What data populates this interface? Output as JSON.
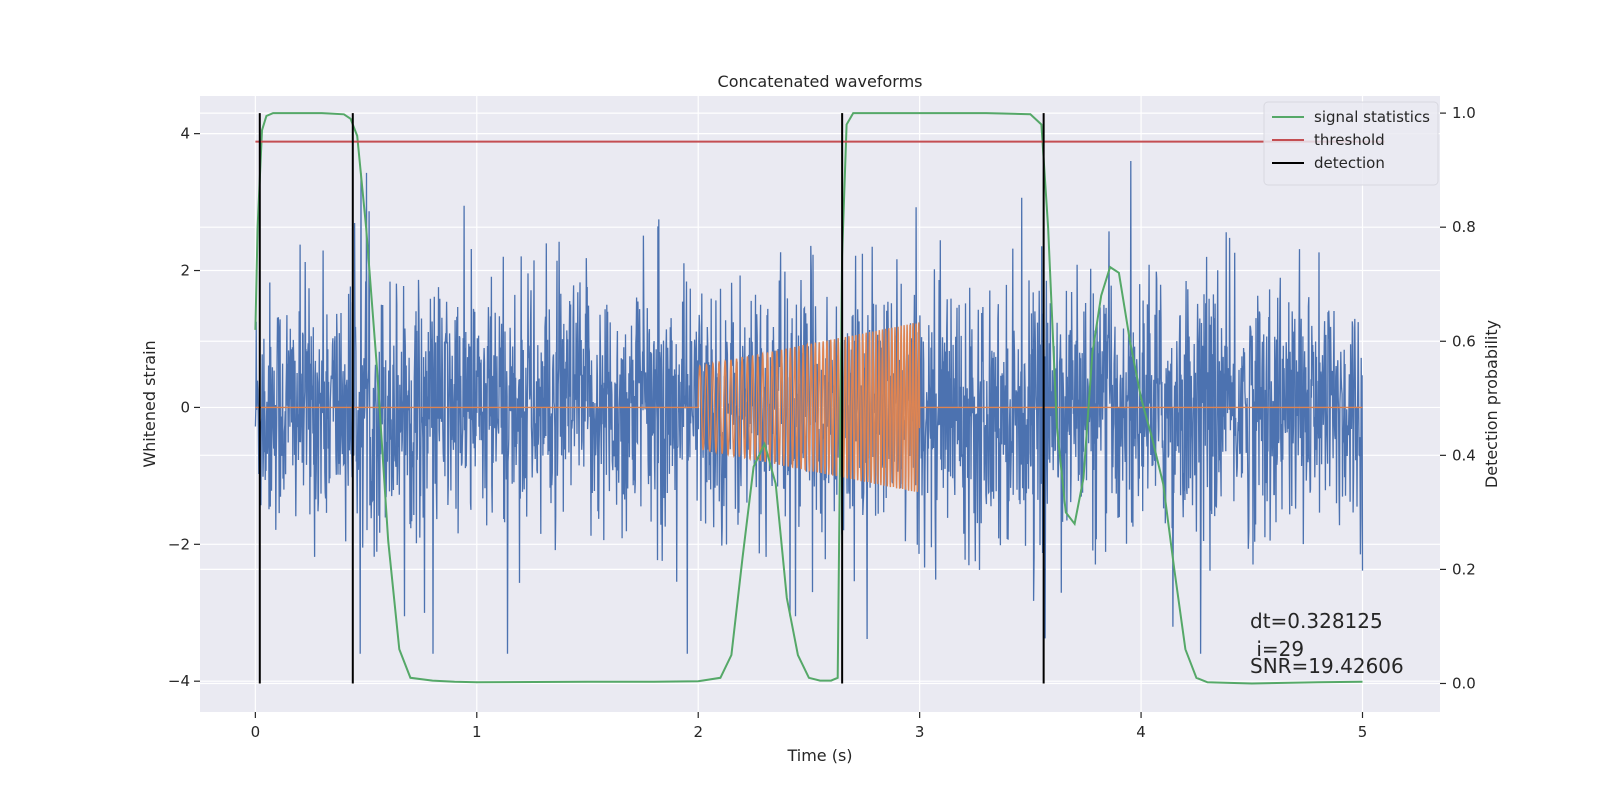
{
  "chart_data": {
    "type": "line",
    "title": "Concatenated waveforms",
    "xlabel": "Time (s)",
    "ylabel_left": "Whitened strain",
    "ylabel_right": "Detection probability",
    "xlim": [
      -0.25,
      5.35
    ],
    "ylim_left": [
      -4.45,
      4.55
    ],
    "ylim_right": [
      -0.05,
      1.03
    ],
    "x_ticks": [
      0,
      1,
      2,
      3,
      4,
      5
    ],
    "x_tick_labels": [
      "0",
      "1",
      "2",
      "3",
      "4",
      "5"
    ],
    "y_left_ticks": [
      -4,
      -2,
      0,
      2,
      4
    ],
    "y_left_tick_labels": [
      "−4",
      "−2",
      "0",
      "2",
      "4"
    ],
    "y_right_ticks": [
      0.0,
      0.2,
      0.4,
      0.6,
      0.8,
      1.0
    ],
    "y_right_tick_labels": [
      "0.0",
      "0.2",
      "0.4",
      "0.6",
      "0.8",
      "1.0"
    ],
    "grid": true,
    "legend_position": "top-right",
    "series": [
      {
        "name": "",
        "axis": "left",
        "kind": "noise",
        "color": "#4c72b0",
        "x_range": [
          0,
          5
        ],
        "amplitude_typical": 0.9,
        "amplitude_max": 3.6
      },
      {
        "name": "",
        "axis": "left",
        "kind": "chirp",
        "color": "#dd8452",
        "x_range": [
          0,
          5
        ],
        "active_range": [
          2.0,
          3.0
        ],
        "amplitude_start": 0.6,
        "amplitude_end": 1.25
      },
      {
        "name": "signal statistics",
        "axis": "right",
        "color": "#55a868",
        "x": [
          0.0,
          0.01,
          0.03,
          0.05,
          0.08,
          0.15,
          0.3,
          0.4,
          0.43,
          0.46,
          0.5,
          0.55,
          0.6,
          0.65,
          0.7,
          0.8,
          0.9,
          1.0,
          1.5,
          1.8,
          2.0,
          2.1,
          2.15,
          2.2,
          2.25,
          2.3,
          2.35,
          2.4,
          2.45,
          2.5,
          2.55,
          2.6,
          2.63,
          2.65,
          2.67,
          2.7,
          2.8,
          3.0,
          3.3,
          3.5,
          3.55,
          3.58,
          3.62,
          3.66,
          3.7,
          3.74,
          3.78,
          3.82,
          3.86,
          3.9,
          3.95,
          4.0,
          4.05,
          4.1,
          4.15,
          4.2,
          4.25,
          4.3,
          4.5,
          4.8,
          5.0
        ],
        "y": [
          0.62,
          0.8,
          0.97,
          0.995,
          1.0,
          1.0,
          1.0,
          0.998,
          0.99,
          0.96,
          0.8,
          0.55,
          0.25,
          0.06,
          0.01,
          0.005,
          0.003,
          0.002,
          0.003,
          0.003,
          0.004,
          0.01,
          0.05,
          0.22,
          0.38,
          0.42,
          0.35,
          0.15,
          0.05,
          0.01,
          0.005,
          0.005,
          0.01,
          0.75,
          0.98,
          1.0,
          1.0,
          1.0,
          1.0,
          0.998,
          0.98,
          0.8,
          0.45,
          0.3,
          0.28,
          0.36,
          0.58,
          0.68,
          0.73,
          0.72,
          0.6,
          0.5,
          0.43,
          0.35,
          0.2,
          0.06,
          0.01,
          0.002,
          0.0,
          0.002,
          0.003
        ]
      },
      {
        "name": "threshold",
        "axis": "right",
        "color": "#c44e52",
        "x": [
          0,
          5.1
        ],
        "y": [
          0.95,
          0.95
        ]
      },
      {
        "name": "detection",
        "axis": "right",
        "color": "#000000",
        "kind": "vlines",
        "x": [
          0.02,
          0.44,
          2.65,
          3.56
        ],
        "y_range": [
          0.0,
          1.0
        ]
      }
    ],
    "annotations": [
      "dt=0.328125",
      " i=29",
      "SNR=19.42606"
    ]
  }
}
